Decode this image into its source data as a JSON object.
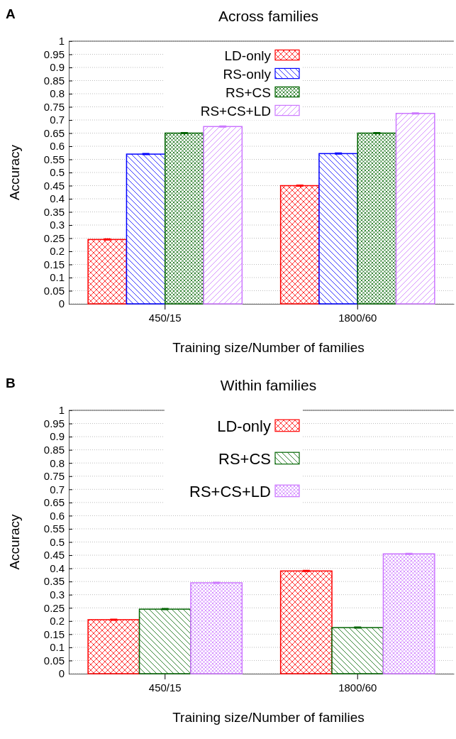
{
  "chart_data": [
    {
      "type": "bar",
      "title": "Across families",
      "xlabel": "Training size/Number of families",
      "ylabel": "Accuracy",
      "annotations": [
        "A"
      ],
      "categories": [
        "450/15",
        "1800/60"
      ],
      "series": [
        {
          "name": "LD-only",
          "color": "#ff0000",
          "values": [
            0.245,
            0.45
          ],
          "errors": [
            0.002,
            0.002
          ]
        },
        {
          "name": "RS-only",
          "color": "#0000ff",
          "values": [
            0.57,
            0.572
          ],
          "errors": [
            0.002,
            0.002
          ]
        },
        {
          "name": "RS+CS",
          "color": "#006400",
          "values": [
            0.65,
            0.65
          ],
          "errors": [
            0.002,
            0.002
          ]
        },
        {
          "name": "RS+CS+LD",
          "color": "#cc77ff",
          "values": [
            0.675,
            0.725
          ],
          "errors": [
            0.002,
            0.002
          ]
        }
      ],
      "ylim": [
        0,
        1
      ],
      "yticks": [
        0,
        0.05,
        0.1,
        0.15,
        0.2,
        0.25,
        0.3,
        0.35,
        0.4,
        0.45,
        0.5,
        0.55,
        0.6,
        0.65,
        0.7,
        0.75,
        0.8,
        0.85,
        0.9,
        0.95,
        1
      ],
      "grid": "y",
      "legend": "top"
    },
    {
      "type": "bar",
      "title": "Within families",
      "xlabel": "Training size/Number of families",
      "ylabel": "Accuracy",
      "annotations": [
        "B"
      ],
      "categories": [
        "450/15",
        "1800/60"
      ],
      "series": [
        {
          "name": "LD-only",
          "color": "#ff0000",
          "values": [
            0.205,
            0.39
          ],
          "errors": [
            0.002,
            0.002
          ]
        },
        {
          "name": "RS+CS",
          "color": "#006400",
          "values": [
            0.245,
            0.175
          ],
          "errors": [
            0.002,
            0.002
          ]
        },
        {
          "name": "RS+CS+LD",
          "color": "#cc77ff",
          "values": [
            0.345,
            0.455
          ],
          "errors": [
            0.002,
            0.002
          ]
        }
      ],
      "ylim": [
        0,
        1
      ],
      "yticks": [
        0,
        0.05,
        0.1,
        0.15,
        0.2,
        0.25,
        0.3,
        0.35,
        0.4,
        0.45,
        0.5,
        0.55,
        0.6,
        0.65,
        0.7,
        0.75,
        0.8,
        0.85,
        0.9,
        0.95,
        1
      ],
      "grid": "y",
      "legend": "top"
    }
  ]
}
